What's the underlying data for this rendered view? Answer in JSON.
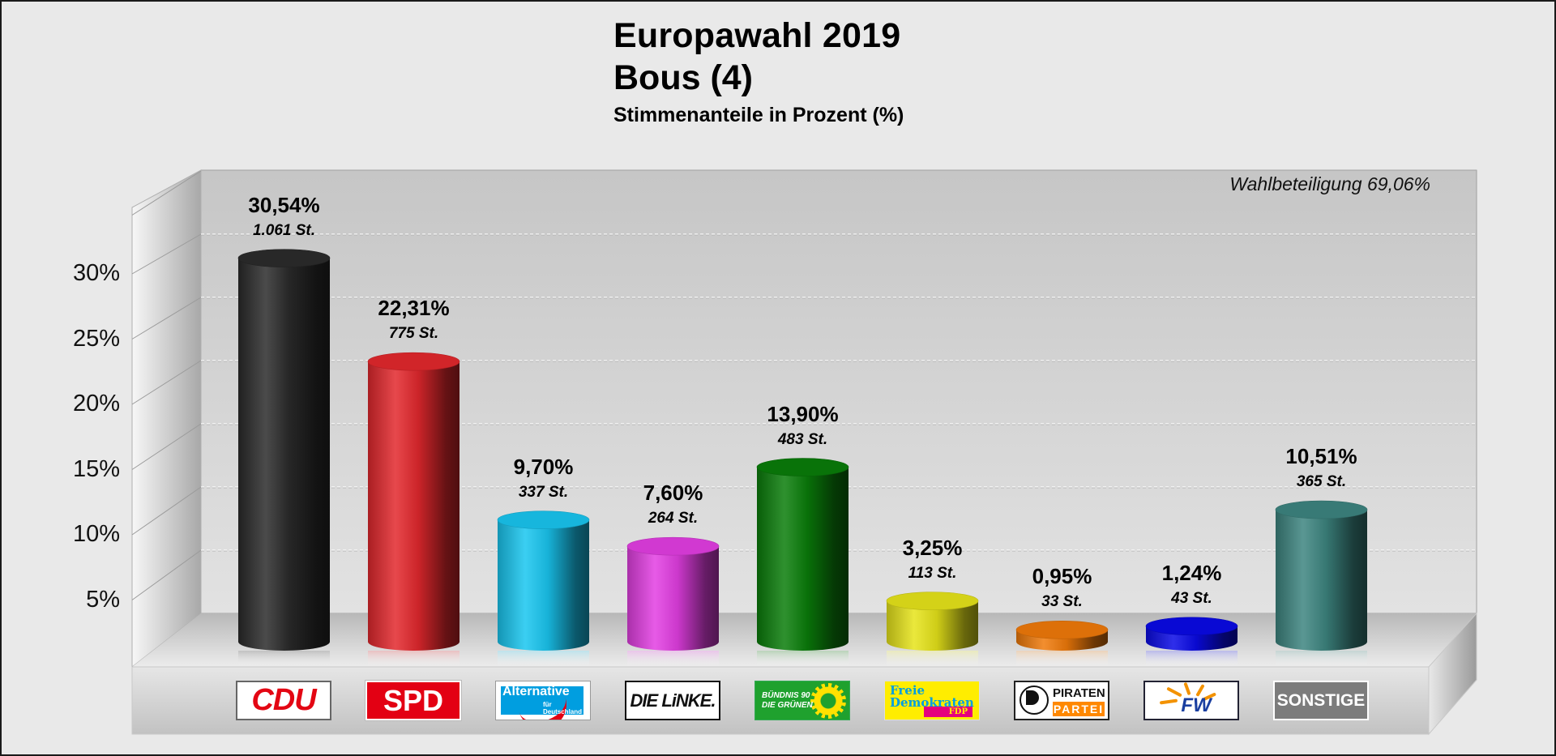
{
  "title": "Europawahl 2019",
  "subtitle": "Bous (4)",
  "caption": "Stimmenanteile in Prozent (%)",
  "turnout_label": "Wahlbeteiligung 69,06%",
  "chart_data": {
    "type": "bar",
    "style": "3d-cylinder",
    "title": "Europawahl 2019 – Bous (4)",
    "subtitle": "Stimmenanteile in Prozent (%)",
    "annotation": "Wahlbeteiligung 69,06%",
    "xlabel": "",
    "ylabel": "",
    "ylim": [
      0,
      35
    ],
    "yticks": [
      5,
      10,
      15,
      20,
      25,
      30
    ],
    "ytick_labels": [
      "5%",
      "10%",
      "15%",
      "20%",
      "25%",
      "30%"
    ],
    "grid": true,
    "categories": [
      "CDU",
      "SPD",
      "AfD",
      "DIE LINKE",
      "GRÜNE",
      "FDP",
      "PIRATEN",
      "FW",
      "SONSTIGE"
    ],
    "values": [
      30.54,
      22.31,
      9.7,
      7.6,
      13.9,
      3.25,
      0.95,
      1.24,
      10.51
    ],
    "value_labels": [
      "30,54%",
      "22,31%",
      "9,70%",
      "7,60%",
      "13,90%",
      "3,25%",
      "0,95%",
      "1,24%",
      "10,51%"
    ],
    "votes": [
      1061,
      775,
      337,
      264,
      483,
      113,
      33,
      43,
      365
    ],
    "vote_labels": [
      "1.061 St.",
      "775 St.",
      "337 St.",
      "264 St.",
      "483 St.",
      "113 St.",
      "33 St.",
      "43 St.",
      "365 St."
    ],
    "colors": [
      "#2b2b2b",
      "#e3282d",
      "#19c6f0",
      "#e33ee3",
      "#0a7d0a",
      "#e6e41a",
      "#f07a0a",
      "#0a0ae6",
      "#3d8580"
    ]
  },
  "logos": [
    {
      "party": "CDU",
      "text": "CDU"
    },
    {
      "party": "SPD",
      "text": "SPD"
    },
    {
      "party": "AfD",
      "text": "Alternative",
      "sub": "für Deutschland"
    },
    {
      "party": "DIE LINKE",
      "text": "DIE LiNKE."
    },
    {
      "party": "GRÜNE",
      "text": "BÜNDNIS 90",
      "sub": "DIE GRÜNEN"
    },
    {
      "party": "FDP",
      "text": "Freie",
      "text2": "Demokraten",
      "sub": "FDP"
    },
    {
      "party": "PIRATEN",
      "text": "PIRATEN",
      "sub": "PARTEI",
      "badge": "de"
    },
    {
      "party": "FW",
      "text": "FW"
    },
    {
      "party": "SONSTIGE",
      "text": "SONSTIGE"
    }
  ]
}
